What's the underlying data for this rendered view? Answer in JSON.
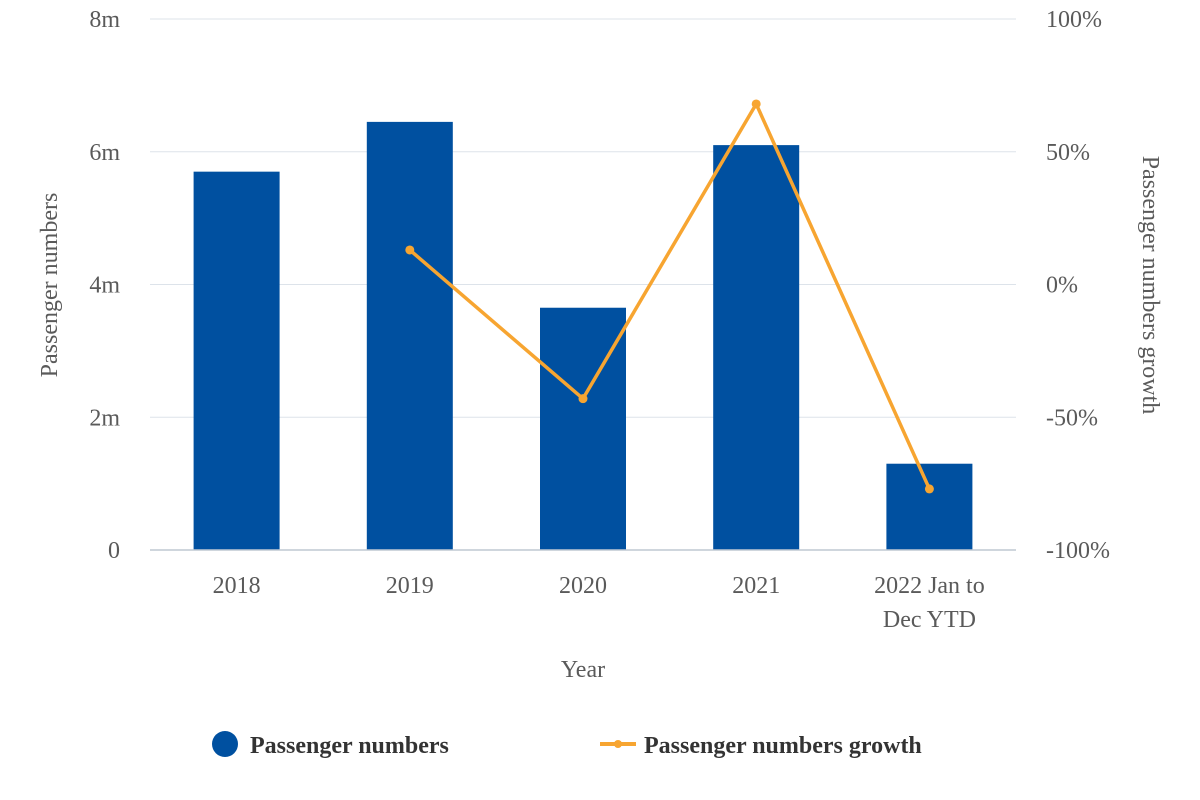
{
  "chart_data": {
    "type": "bar",
    "categories": [
      [
        "2018"
      ],
      [
        "2019"
      ],
      [
        "2020"
      ],
      [
        "2021"
      ],
      [
        "2022 Jan to",
        "Dec YTD"
      ]
    ],
    "series": [
      {
        "name": "Passenger numbers",
        "type": "bar",
        "axis": "left",
        "color": "#0050a0",
        "values": [
          5700000,
          6450000,
          3650000,
          6100000,
          1300000
        ]
      },
      {
        "name": "Passenger numbers growth",
        "type": "line",
        "axis": "right",
        "color": "#f7a531",
        "values": [
          null,
          13,
          -43,
          68,
          -77
        ]
      }
    ],
    "xlabel": "Year",
    "ylabel": "Passenger numbers",
    "y2label": "Passenger numbers growth",
    "ylim": [
      0,
      8000000
    ],
    "y2lim": [
      -100,
      100
    ],
    "y_ticks": [
      0,
      2000000,
      4000000,
      6000000,
      8000000
    ],
    "y_tick_labels": [
      "0",
      "2m",
      "4m",
      "6m",
      "8m"
    ],
    "y2_ticks": [
      -100,
      -50,
      0,
      50,
      100
    ],
    "y2_tick_labels": [
      "-100%",
      "-50%",
      "0%",
      "50%",
      "100%"
    ],
    "grid": true,
    "legend_position": "bottom-center"
  }
}
